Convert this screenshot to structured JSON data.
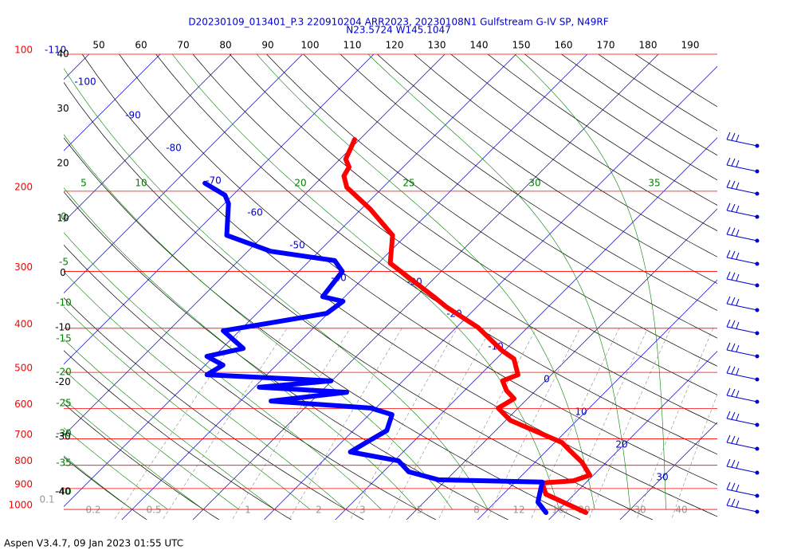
{
  "chart_data": {
    "type": "skewt",
    "title": "D20230109_013401_P.3 220910204 ARR2023, 20230108N1 Gulfstream G-IV SP, N49RF",
    "subtitle": "N23.5724 W145.1047",
    "footer": "Aspen V3.4.7, 09 Jan 2023  01:55 UTC",
    "pressure_ticks": [
      100,
      200,
      300,
      400,
      500,
      600,
      700,
      800,
      900,
      1000
    ],
    "pressure_color": "#ff0000",
    "isotherm_labels": [
      -110,
      -100,
      -90,
      -80,
      -70,
      -60,
      -50,
      -40,
      -30,
      -20,
      -10,
      0,
      10,
      20,
      30
    ],
    "isotherm_color": "#0000cc",
    "dry_adiabat_labels": [
      50,
      60,
      70,
      80,
      90,
      100,
      110,
      120,
      130,
      140,
      150,
      160,
      170,
      180,
      190
    ],
    "altitude_labels": [
      40,
      30,
      20,
      10,
      0,
      -10,
      -20,
      -30,
      -40
    ],
    "moist_adiabat_labels_top": [
      5,
      10,
      20,
      25,
      30,
      35
    ],
    "moist_adiabat_labels_left": [
      0,
      -5,
      -10,
      -15,
      -20,
      -25,
      -30,
      -35,
      -40
    ],
    "moist_color": "#008000",
    "mixing_ratio_labels": [
      0.1,
      0.2,
      0.5,
      1,
      2,
      3,
      5,
      8,
      12,
      16,
      20,
      30,
      40
    ],
    "series": [
      {
        "color": "#ff0000",
        "pressure": [
          1016,
          926,
          875,
          865,
          841,
          788,
          742,
          713,
          637,
          599,
          571,
          548,
          522,
          506,
          467,
          448,
          398,
          359,
          342,
          288,
          250,
          219,
          196,
          185,
          177,
          170,
          160,
          154
        ],
        "values": [
          24.2,
          16.0,
          13.9,
          18.0,
          19.5,
          16.6,
          13.2,
          11.0,
          0.6,
          -2.8,
          -1.9,
          -4.1,
          -6.0,
          -4.7,
          -7.5,
          -10.3,
          -17.0,
          -24.3,
          -27.3,
          -38.3,
          -41.9,
          -48.7,
          -55.1,
          -57.1,
          -57.6,
          -59.2,
          -60.1,
          -60.7
        ]
      },
      {
        "color": "#0000ff",
        "pressure": [
          1016,
          964,
          871,
          861,
          827,
          782,
          748,
          713,
          671,
          619,
          599,
          578,
          553,
          539,
          522,
          506,
          482,
          461,
          443,
          405,
          389,
          371,
          349,
          341,
          300,
          284,
          271,
          250,
          213,
          204,
          192
        ],
        "values": [
          18.6,
          16.0,
          13.8,
          -1.1,
          -6.4,
          -9.4,
          -17.4,
          -16.5,
          -15.3,
          -16.8,
          -20.7,
          -35.7,
          -26.3,
          -39.3,
          -30.1,
          -48.4,
          -47.5,
          -51.0,
          -47.0,
          -52.3,
          -46.7,
          -40.2,
          -39.6,
          -43.1,
          -43.9,
          -46.5,
          -56.8,
          -65.2,
          -69.4,
          -71.1,
          -75.6
        ]
      }
    ]
  }
}
